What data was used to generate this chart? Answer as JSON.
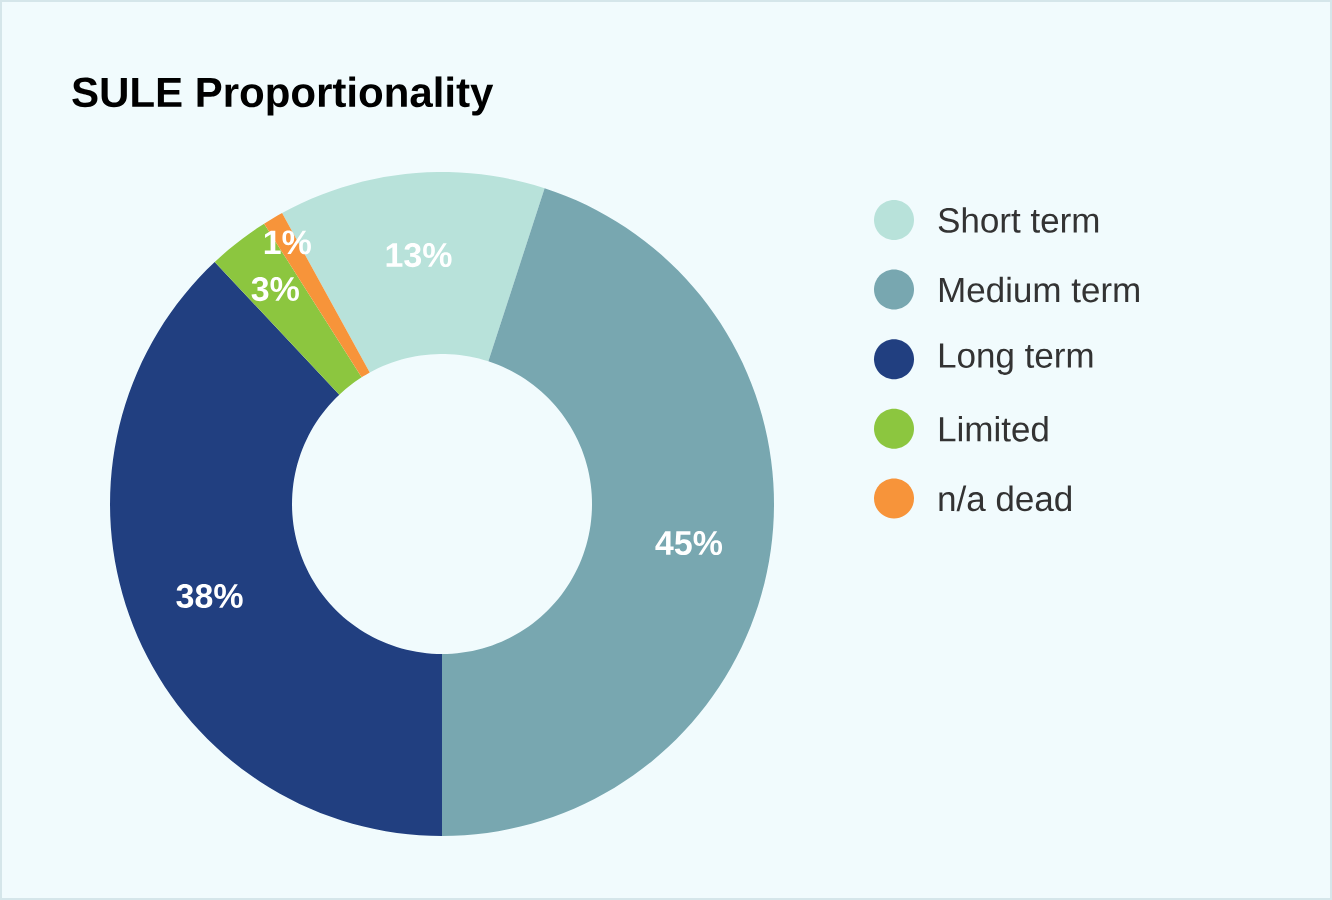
{
  "chart_data": {
    "type": "donut",
    "title": "SULE Proportionality",
    "categories": [
      "Short term",
      "Medium term",
      "Long term",
      "Limited",
      "n/a dead"
    ],
    "values": [
      13,
      45,
      38,
      3,
      1
    ],
    "colors": [
      "#b8e2da",
      "#78a7b0",
      "#213f80",
      "#8cc63f",
      "#f7943a"
    ],
    "value_labels": [
      "13%",
      "45%",
      "38%",
      "3%",
      "1%"
    ],
    "legend": "right"
  }
}
